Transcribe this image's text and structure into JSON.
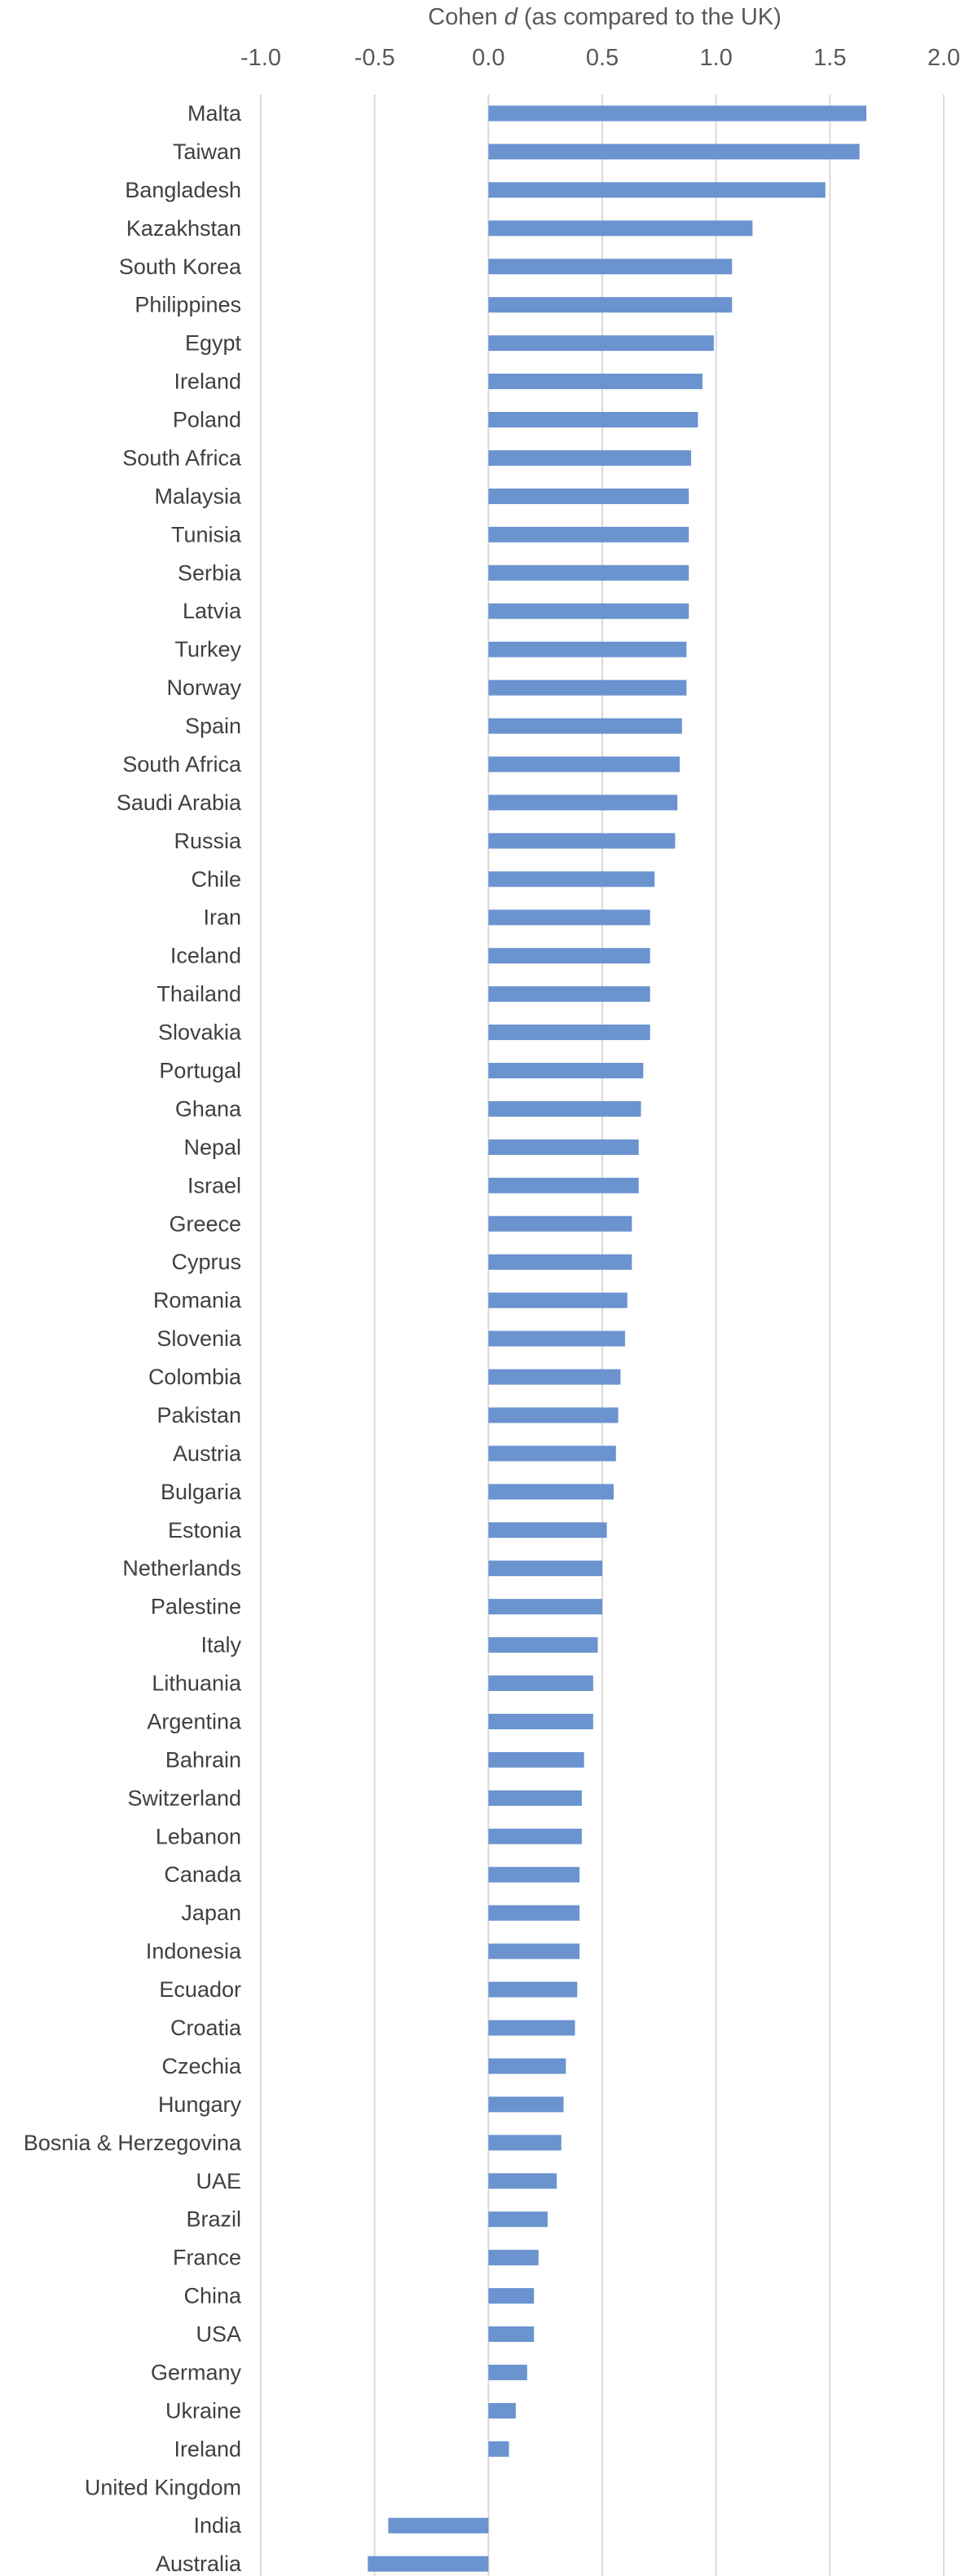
{
  "chart_data": {
    "type": "bar",
    "orientation": "horizontal",
    "title": "",
    "xlabel_prefix": "Cohen ",
    "xlabel_italic": "d",
    "xlabel_suffix": " (as compared to the UK)",
    "xlabel_position": "top",
    "ylabel": "",
    "xlim": [
      -1.0,
      2.0
    ],
    "xticks": [
      -1.0,
      -0.5,
      0.0,
      0.5,
      1.0,
      1.5,
      2.0
    ],
    "xtick_labels": [
      "-1.0",
      "-0.5",
      "0.0",
      "0.5",
      "1.0",
      "1.5",
      "2.0"
    ],
    "grid": "vertical",
    "bar_color": "#6a93d0",
    "categories": [
      "Malta",
      "Taiwan",
      "Bangladesh",
      "Kazakhstan",
      "South Korea",
      "Philippines",
      "Egypt",
      "Ireland",
      "Poland",
      "South Africa",
      "Malaysia",
      "Tunisia",
      "Serbia",
      "Latvia",
      "Turkey",
      "Norway",
      "Spain",
      "South Africa",
      "Saudi Arabia",
      "Russia",
      "Chile",
      "Iran",
      "Iceland",
      "Thailand",
      "Slovakia",
      "Portugal",
      "Ghana",
      "Nepal",
      "Israel",
      "Greece",
      "Cyprus",
      "Romania",
      "Slovenia",
      "Colombia",
      "Pakistan",
      "Austria",
      "Bulgaria",
      "Estonia",
      "Netherlands",
      "Palestine",
      "Italy",
      "Lithuania",
      "Argentina",
      "Bahrain",
      "Switzerland",
      "Lebanon",
      "Canada",
      "Japan",
      "Indonesia",
      "Ecuador",
      "Croatia",
      "Czechia",
      "Hungary",
      "Bosnia & Herzegovina",
      "UAE",
      "Brazil",
      "France",
      "China",
      "USA",
      "Germany",
      "Ukraine",
      "Ireland",
      "United Kingdom",
      "India",
      "Australia"
    ],
    "values": [
      1.66,
      1.63,
      1.48,
      1.16,
      1.07,
      1.07,
      0.99,
      0.94,
      0.92,
      0.89,
      0.88,
      0.88,
      0.88,
      0.88,
      0.87,
      0.87,
      0.85,
      0.84,
      0.83,
      0.82,
      0.73,
      0.71,
      0.71,
      0.71,
      0.71,
      0.68,
      0.67,
      0.66,
      0.66,
      0.63,
      0.63,
      0.61,
      0.6,
      0.58,
      0.57,
      0.56,
      0.55,
      0.52,
      0.5,
      0.5,
      0.48,
      0.46,
      0.46,
      0.42,
      0.41,
      0.41,
      0.4,
      0.4,
      0.4,
      0.39,
      0.38,
      0.34,
      0.33,
      0.32,
      0.3,
      0.26,
      0.22,
      0.2,
      0.2,
      0.17,
      0.12,
      0.09,
      0.0,
      -0.44,
      -0.53
    ]
  }
}
